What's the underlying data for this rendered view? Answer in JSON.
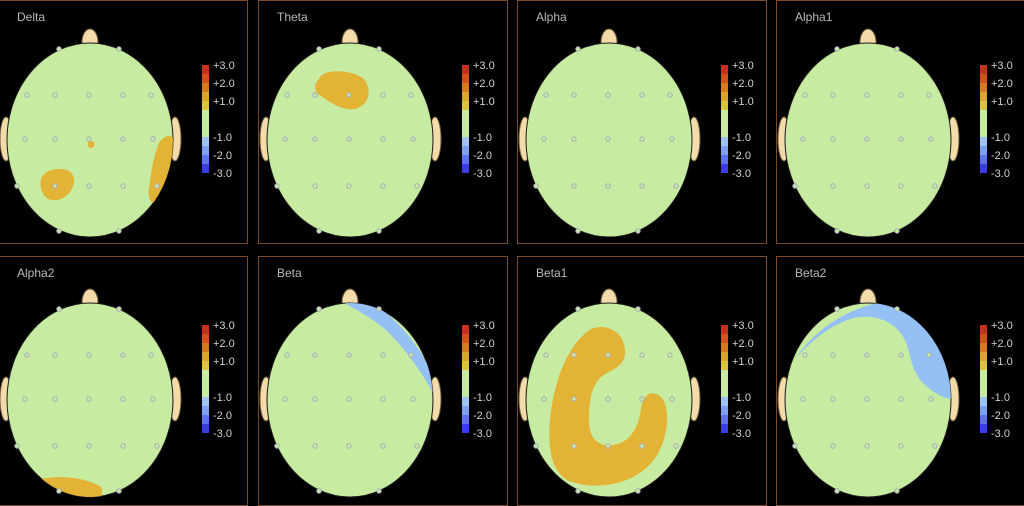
{
  "colors": {
    "background": "#000000",
    "border": "#7a4a22",
    "head": "#c7eba0",
    "ear": "#f4dbaa",
    "electrode": "#a9a9c4",
    "positive": "#e3b335",
    "negative": "#94c0f5"
  },
  "chart_data": [
    {
      "type": "heatmap",
      "title": "Delta",
      "scale": {
        "labels": [
          "+3.0",
          "+2.0",
          "+1.0",
          "-1.0",
          "-2.0",
          "-3.0"
        ]
      }
    },
    {
      "type": "heatmap",
      "title": "Theta",
      "scale": {
        "labels": [
          "+3.0",
          "+2.0",
          "+1.0",
          "-1.0",
          "-2.0",
          "-3.0"
        ]
      }
    },
    {
      "type": "heatmap",
      "title": "Alpha",
      "scale": {
        "labels": [
          "+3.0",
          "+2.0",
          "+1.0",
          "-1.0",
          "-2.0",
          "-3.0"
        ]
      }
    },
    {
      "type": "heatmap",
      "title": "Alpha1",
      "scale": {
        "labels": [
          "+3.0",
          "+2.0",
          "+1.0",
          "-1.0",
          "-2.0",
          "-3.0"
        ]
      }
    },
    {
      "type": "heatmap",
      "title": "Alpha2",
      "scale": {
        "labels": [
          "+3.0",
          "+2.0",
          "+1.0",
          "-1.0",
          "-2.0",
          "-3.0"
        ]
      }
    },
    {
      "type": "heatmap",
      "title": "Beta",
      "scale": {
        "labels": [
          "+3.0",
          "+2.0",
          "+1.0",
          "-1.0",
          "-2.0",
          "-3.0"
        ]
      }
    },
    {
      "type": "heatmap",
      "title": "Beta1",
      "scale": {
        "labels": [
          "+3.0",
          "+2.0",
          "+1.0",
          "-1.0",
          "-2.0",
          "-3.0"
        ]
      }
    },
    {
      "type": "heatmap",
      "title": "Beta2",
      "scale": {
        "labels": [
          "+3.0",
          "+2.0",
          "+1.0",
          "-1.0",
          "-2.0",
          "-3.0"
        ]
      }
    }
  ]
}
